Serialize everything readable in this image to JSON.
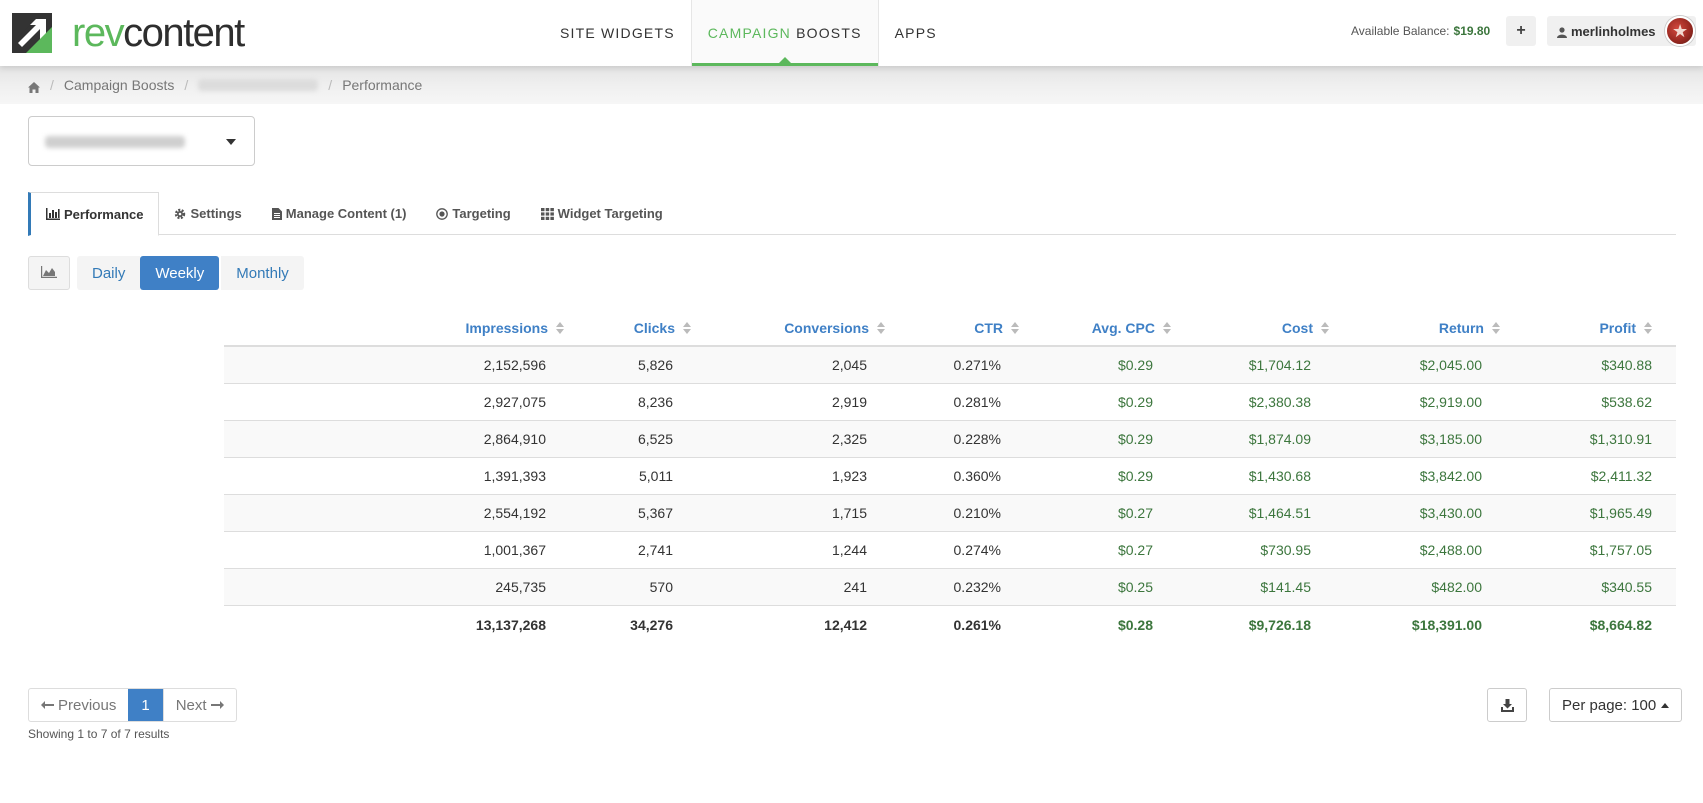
{
  "header": {
    "logo_prefix": "rev",
    "logo_suffix": "content",
    "nav": [
      {
        "label": "SITE WIDGETS"
      },
      {
        "label_green": "CAMPAIGN",
        "label_rest": " BOOSTS"
      },
      {
        "label": "APPS"
      }
    ],
    "balance_label": "Available Balance:",
    "balance_value": "$19.80",
    "plus_label": "+",
    "username": "merlinholmes"
  },
  "breadcrumb": {
    "items": [
      "Campaign Boosts",
      "Performance"
    ],
    "separator": "/"
  },
  "tabs": [
    {
      "label": "Performance",
      "icon": "bar-chart-icon"
    },
    {
      "label": "Settings",
      "icon": "gear-icon"
    },
    {
      "label": "Manage Content (1)",
      "icon": "document-icon"
    },
    {
      "label": "Targeting",
      "icon": "target-icon"
    },
    {
      "label": "Widget Targeting",
      "icon": "grid-icon"
    }
  ],
  "range": {
    "daily": "Daily",
    "weekly": "Weekly",
    "monthly": "Monthly",
    "selected": "Weekly"
  },
  "table": {
    "columns": [
      "Impressions",
      "Clicks",
      "Conversions",
      "CTR",
      "Avg. CPC",
      "Cost",
      "Return",
      "Profit"
    ],
    "rows": [
      [
        "2,152,596",
        "5,826",
        "2,045",
        "0.271%",
        "$0.29",
        "$1,704.12",
        "$2,045.00",
        "$340.88"
      ],
      [
        "2,927,075",
        "8,236",
        "2,919",
        "0.281%",
        "$0.29",
        "$2,380.38",
        "$2,919.00",
        "$538.62"
      ],
      [
        "2,864,910",
        "6,525",
        "2,325",
        "0.228%",
        "$0.29",
        "$1,874.09",
        "$3,185.00",
        "$1,310.91"
      ],
      [
        "1,391,393",
        "5,011",
        "1,923",
        "0.360%",
        "$0.29",
        "$1,430.68",
        "$3,842.00",
        "$2,411.32"
      ],
      [
        "2,554,192",
        "5,367",
        "1,715",
        "0.210%",
        "$0.27",
        "$1,464.51",
        "$3,430.00",
        "$1,965.49"
      ],
      [
        "1,001,367",
        "2,741",
        "1,244",
        "0.274%",
        "$0.27",
        "$730.95",
        "$2,488.00",
        "$1,757.05"
      ],
      [
        "245,735",
        "570",
        "241",
        "0.232%",
        "$0.25",
        "$141.45",
        "$482.00",
        "$340.55"
      ]
    ],
    "totals": [
      "13,137,268",
      "34,276",
      "12,412",
      "0.261%",
      "$0.28",
      "$9,726.18",
      "$18,391.00",
      "$8,664.82"
    ]
  },
  "pagination": {
    "previous": "Previous",
    "page": "1",
    "next": "Next",
    "showing": "Showing 1 to 7 of 7 results",
    "per_page": "Per page: 100"
  },
  "colors": {
    "brand_green": "#5cb85c",
    "link_blue": "#3f80c6",
    "money_green": "#3c763d"
  }
}
